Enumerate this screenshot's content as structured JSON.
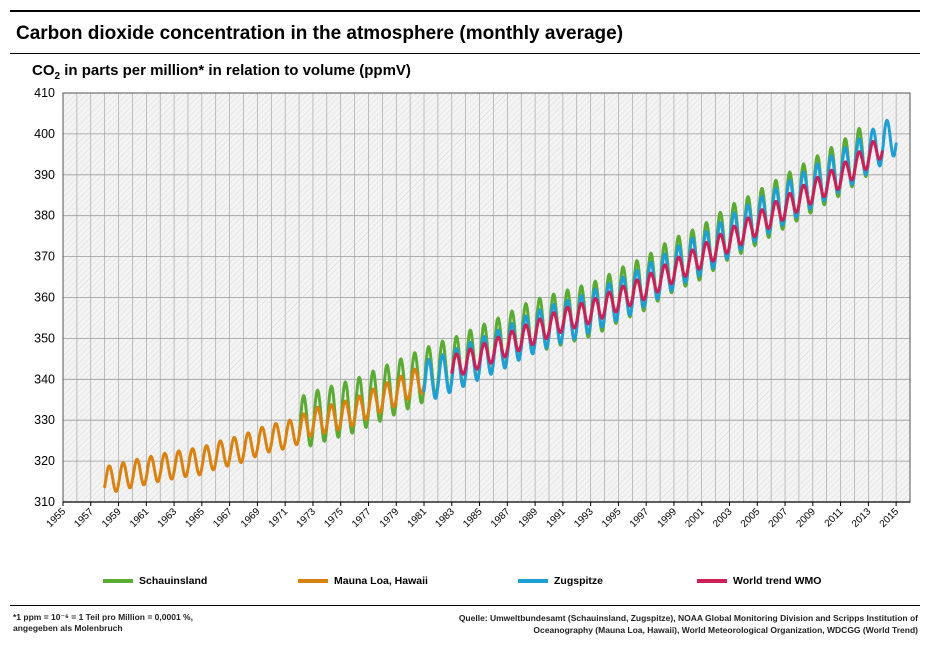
{
  "header": {
    "title": "Carbon dioxide concentration in the atmosphere (monthly average)",
    "ylabel_prefix": "CO",
    "ylabel_sub": "2",
    "ylabel_suffix": " in parts per million* in relation to volume (ppmV)"
  },
  "footer": {
    "footnote": "*1 ppm = 10⁻⁶ = 1 Teil pro Million = 0,0001 %,\nangegeben als Molenbruch",
    "source": "Quelle: Umweltbundesamt (Schauinsland, Zugspitze), NOAA Global Monitoring Division and Scripps Institution of Oceanography  (Mauna Loa, Hawaii), World Meteorological Organization, WDCGG (World Trend)"
  },
  "colors": {
    "schauinsland": "#5aab32",
    "mauna_loa": "#d9820f",
    "zugspitze": "#1e9fd6",
    "wmo": "#cc1f55",
    "grid": "#9a9a9a"
  },
  "chart_data": {
    "type": "line",
    "title": "Carbon dioxide concentration in the atmosphere (monthly average)",
    "ylabel": "CO2 in parts per million* in relation to volume (ppmV)",
    "xlim": [
      1955,
      2016
    ],
    "ylim": [
      310,
      410
    ],
    "xticks": [
      "1955",
      "1957",
      "1959",
      "1961",
      "1963",
      "1965",
      "1967",
      "1969",
      "1971",
      "1973",
      "1975",
      "1977",
      "1979",
      "1981",
      "1983",
      "1985",
      "1987",
      "1989",
      "1991",
      "1993",
      "1995",
      "1997",
      "1999",
      "2001",
      "2003",
      "2005",
      "2007",
      "2009",
      "2011",
      "2013",
      "2015"
    ],
    "yticks": [
      "310",
      "320",
      "330",
      "340",
      "350",
      "360",
      "370",
      "380",
      "390",
      "400",
      "410"
    ],
    "grid": true,
    "legend_position": "bottom",
    "series": [
      {
        "name": "Schauinsland",
        "color_key": "schauinsland",
        "x": [
          1972.0,
          1973.0,
          1974.0,
          1975.0,
          1976.0,
          1977.0,
          1978.0,
          1979.0,
          1980.0,
          1981.0,
          1982.0,
          1983.0,
          1984.0,
          1985.0,
          1986.0,
          1987.0,
          1988.0,
          1989.0,
          1990.0,
          1991.0,
          1992.0,
          1993.0,
          1994.0,
          1995.0,
          1996.0,
          1997.0,
          1998.0,
          1999.0,
          2000.0,
          2001.0,
          2002.0,
          2003.0,
          2004.0,
          2005.0,
          2006.0,
          2007.0,
          2008.0,
          2009.0,
          2010.0,
          2011.0,
          2012.0,
          2013.0
        ],
        "mean": [
          329.0,
          330.5,
          331.5,
          332.5,
          333.5,
          335.0,
          336.5,
          338.0,
          339.5,
          341.0,
          342.5,
          343.5,
          345.0,
          346.5,
          348.0,
          349.5,
          351.5,
          353.0,
          354.0,
          355.0,
          356.0,
          357.0,
          358.5,
          360.5,
          362.0,
          363.5,
          366.0,
          368.0,
          369.5,
          371.0,
          373.5,
          376.0,
          377.5,
          379.5,
          381.5,
          383.5,
          385.5,
          387.5,
          389.5,
          391.5,
          394.0,
          396.5
        ],
        "amplitude": 6.5
      },
      {
        "name": "Mauna Loa, Hawaii",
        "color_key": "mauna_loa",
        "x": [
          1958.0,
          1959.0,
          1960.0,
          1961.0,
          1962.0,
          1963.0,
          1964.0,
          1965.0,
          1966.0,
          1967.0,
          1968.0,
          1969.0,
          1970.0,
          1971.0,
          1972.0,
          1973.0,
          1974.0,
          1975.0,
          1976.0,
          1977.0,
          1978.0,
          1979.0,
          1980.0,
          1981.0
        ],
        "mean": [
          315.3,
          316.0,
          316.9,
          317.6,
          318.4,
          319.0,
          319.6,
          320.0,
          321.4,
          322.2,
          323.1,
          324.6,
          325.7,
          326.3,
          327.5,
          329.7,
          330.2,
          331.1,
          332.0,
          333.8,
          335.4,
          336.8,
          338.7,
          340.1
        ],
        "amplitude": 3.3
      },
      {
        "name": "Zugspitze",
        "color_key": "zugspitze",
        "x": [
          1981.0,
          1982.0,
          1983.0,
          1984.0,
          1985.0,
          1986.0,
          1987.0,
          1988.0,
          1989.0,
          1990.0,
          1991.0,
          1992.0,
          1993.0,
          1994.0,
          1995.0,
          1996.0,
          1997.0,
          1998.0,
          1999.0,
          2000.0,
          2001.0,
          2002.0,
          2003.0,
          2004.0,
          2005.0,
          2006.0,
          2007.0,
          2008.0,
          2009.0,
          2010.0,
          2011.0,
          2012.0,
          2013.0,
          2014.0,
          2015.0
        ],
        "mean": [
          339.5,
          340.5,
          342.0,
          343.5,
          345.0,
          346.5,
          348.0,
          350.0,
          351.5,
          353.0,
          354.0,
          355.0,
          356.5,
          358.0,
          359.5,
          361.0,
          363.0,
          365.0,
          367.0,
          369.0,
          370.5,
          372.5,
          375.0,
          377.0,
          379.0,
          381.0,
          383.0,
          385.0,
          387.0,
          389.0,
          391.0,
          393.0,
          395.5,
          397.5,
          400.0
        ],
        "amplitude": 5.0
      },
      {
        "name": "World trend WMO",
        "color_key": "wmo",
        "x": [
          1983.0,
          1985.0,
          1987.0,
          1989.0,
          1991.0,
          1993.0,
          1995.0,
          1997.0,
          1999.0,
          2001.0,
          2003.0,
          2005.0,
          2007.0,
          2009.0,
          2011.0,
          2013.0,
          2014.0
        ],
        "mean": [
          343.0,
          345.5,
          348.5,
          351.5,
          354.5,
          356.5,
          359.5,
          362.5,
          366.5,
          370.0,
          374.0,
          378.0,
          382.0,
          386.0,
          389.5,
          394.5,
          397.0
        ],
        "amplitude": 2.8
      }
    ]
  }
}
